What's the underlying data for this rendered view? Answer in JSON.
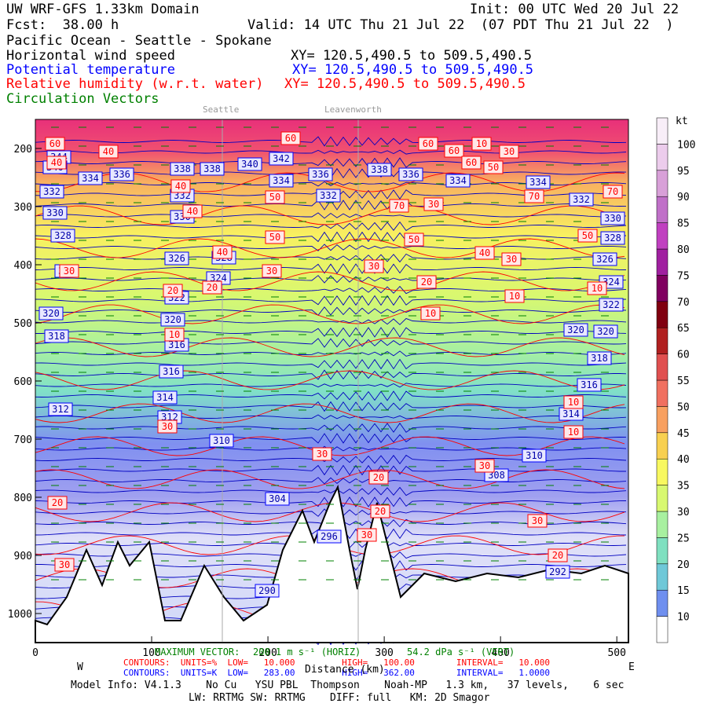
{
  "header": {
    "title": "UW WRF-GFS 1.33km Domain",
    "init": "Init: 00 UTC Wed 20 Jul 22",
    "fcst": "Fcst:  38.00 h",
    "valid": "Valid: 14 UTC Thu 21 Jul 22  (07 PDT Thu 21 Jul 22  )",
    "region": "Pacific Ocean - Seattle - Spokane",
    "field1": "Horizontal wind speed",
    "xy1": "XY= 120.5,490.5 to 509.5,490.5",
    "field2": "Potential temperature",
    "xy2": "XY= 120.5,490.5 to 509.5,490.5",
    "field3": "Relative humidity (w.r.t. water)",
    "xy3": "XY= 120.5,490.5 to 509.5,490.5",
    "field4": "Circulation Vectors"
  },
  "places": [
    "Seattle",
    "Leavenworth"
  ],
  "footer": {
    "west": "W",
    "east": "E",
    "xlabel": "Distance (km)",
    "maxvec_label": "MAXIMUM VECTOR:",
    "maxvec_horiz": "200.1 m s⁻¹ (HORIZ)",
    "maxvec_vert": "54.2 dPa s⁻¹ (VERT)",
    "rh_contours": "CONTOURS:  UNITS=%  LOW=   10.000         HIGH=   100.00        INTERVAL=   10.000",
    "th_contours": "CONTOURS:  UNITS=K  LOW=   283.00         HIGH=   362.00        INTERVAL=   1.0000",
    "model1": "Model Info: V4.1.3    No Cu   YSU PBL  Thompson    Noah-MP   1.3 km,   37 levels,    6 sec",
    "model2": "LW: RRTMG SW: RRTMG    DIFF: full   KM: 2D Smagor"
  },
  "chart_data": {
    "type": "heatmap",
    "description_fields": [
      "wind speed (filled)",
      "potential temperature (blue contours)",
      "relative humidity (red contours)"
    ],
    "x_ticks": [
      0,
      100,
      200,
      300,
      400,
      500
    ],
    "x_range": [
      0,
      510
    ],
    "y_ticks": [
      200,
      300,
      400,
      500,
      600,
      700,
      800,
      900,
      1000
    ],
    "y_range": [
      150,
      1050
    ],
    "y_scale": "pressure (hPa), increasing downward",
    "colorbar": {
      "unit": "kt",
      "levels": [
        10,
        15,
        20,
        25,
        30,
        35,
        40,
        45,
        50,
        55,
        60,
        65,
        70,
        75,
        80,
        85,
        90,
        95,
        100
      ],
      "colors": [
        "#6f8fef",
        "#6fc8d8",
        "#7fe0c0",
        "#a8f0a0",
        "#d8f870",
        "#f8f860",
        "#f8d050",
        "#f8a060",
        "#f07060",
        "#e05050",
        "#b02020",
        "#800010",
        "#800060",
        "#a020a0",
        "#c040c0",
        "#c070c8",
        "#d8a0d8",
        "#ecccec",
        "#f8eef8"
      ]
    },
    "theta_labels": [
      344,
      340,
      338,
      336,
      334,
      332,
      330,
      328,
      326,
      324,
      322,
      320,
      318,
      316,
      314,
      312,
      310,
      308,
      304,
      296,
      290,
      292
    ],
    "rh_labels": [
      10,
      20,
      30,
      40,
      50,
      60,
      70
    ]
  }
}
